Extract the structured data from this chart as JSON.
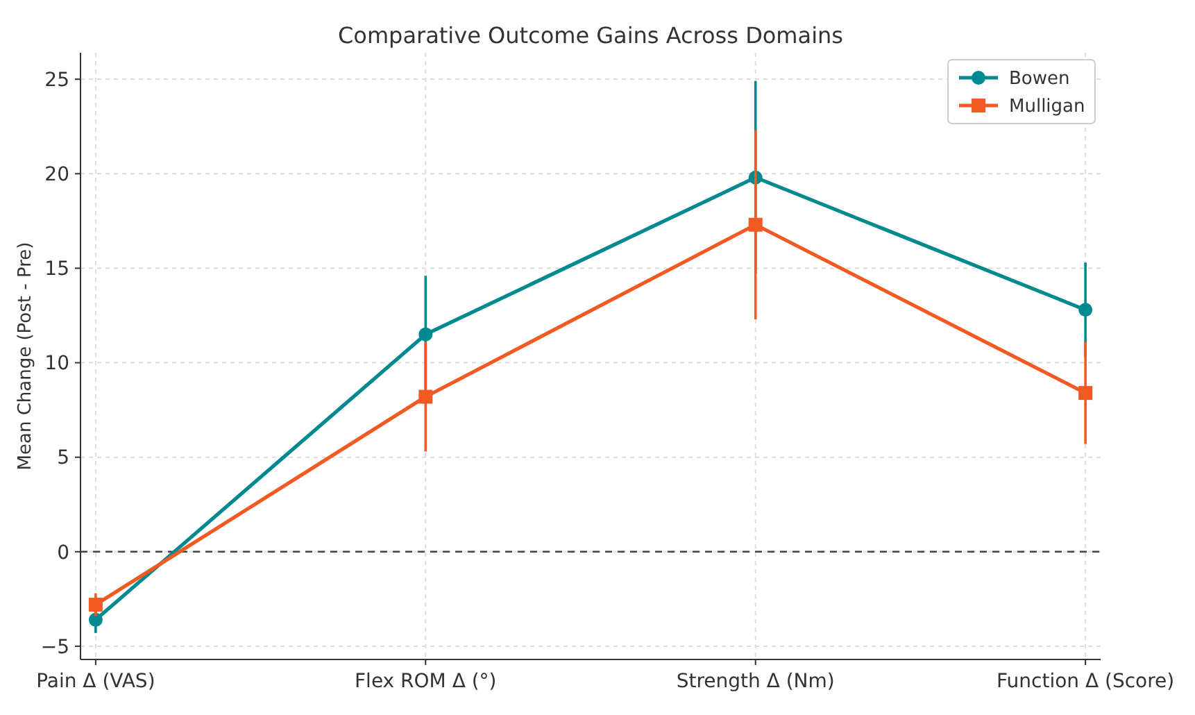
{
  "chart_data": {
    "type": "line",
    "title": "Comparative Outcome Gains Across Domains",
    "ylabel": "Mean Change (Post - Pre)",
    "categories": [
      "Pain Δ (VAS)",
      "Flex ROM Δ (°)",
      "Strength Δ (Nm)",
      "Function Δ (Score)"
    ],
    "series": [
      {
        "name": "Bowen",
        "color": "#00898f",
        "marker": "circle",
        "values": [
          -3.6,
          11.5,
          19.8,
          12.8
        ],
        "errors": [
          0.7,
          3.1,
          5.1,
          2.5
        ]
      },
      {
        "name": "Mulligan",
        "color": "#f15a22",
        "marker": "square",
        "values": [
          -2.8,
          8.2,
          17.3,
          8.4
        ],
        "errors": [
          0.6,
          2.9,
          5.0,
          2.7
        ]
      }
    ],
    "ylim": [
      -5.7,
      26.4
    ],
    "yticks": [
      {
        "value": -5,
        "label": "−5"
      },
      0,
      5,
      10,
      15,
      20,
      25
    ],
    "grid": true,
    "legend": "top right",
    "line_style": "solid",
    "ref_lines": [
      {
        "axis": "y",
        "value": 0,
        "color": "#444444",
        "line_style": "dashed"
      }
    ]
  }
}
